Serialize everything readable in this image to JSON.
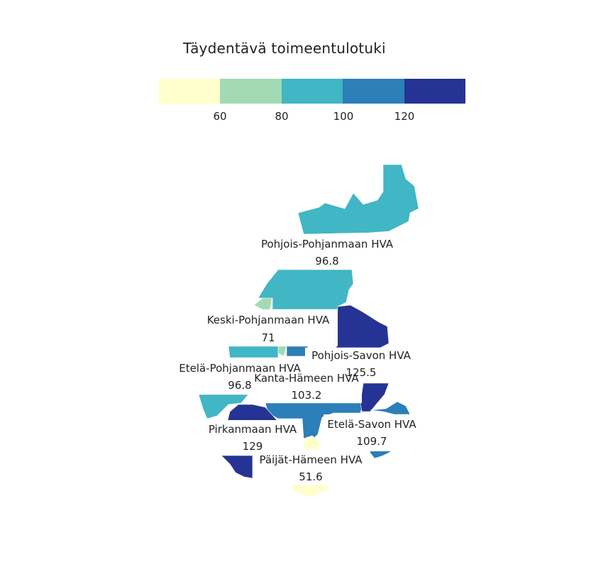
{
  "title": "Täydentävä toimeentulotuki",
  "legend": {
    "colors": [
      "#ffffcc",
      "#a1dab4",
      "#41b6c4",
      "#2c7fb8",
      "#253494"
    ],
    "ticks": [
      "60",
      "80",
      "100",
      "120"
    ]
  },
  "regions": [
    {
      "name": "Pohjois-Pohjanmaan HVA",
      "value": "96.8",
      "color": "#41b6c4"
    },
    {
      "name": "Keski-Pohjanmaan HVA",
      "value": "71",
      "color": "#a1dab4"
    },
    {
      "name": "Pohjois-Savon HVA",
      "value": "125.5",
      "color": "#253494"
    },
    {
      "name": "Etelä-Pohjanmaan HVA",
      "value": "96.8",
      "color": "#41b6c4"
    },
    {
      "name": "Kanta-Hämeen HVA",
      "value": "103.2",
      "color": "#2c7fb8"
    },
    {
      "name": "Pirkanmaan HVA",
      "value": "129",
      "color": "#253494"
    },
    {
      "name": "Etelä-Savon HVA",
      "value": "109.7",
      "color": "#2c7fb8"
    },
    {
      "name": "Päijät-Hämeen HVA",
      "value": "51.6",
      "color": "#ffffcc"
    }
  ]
}
